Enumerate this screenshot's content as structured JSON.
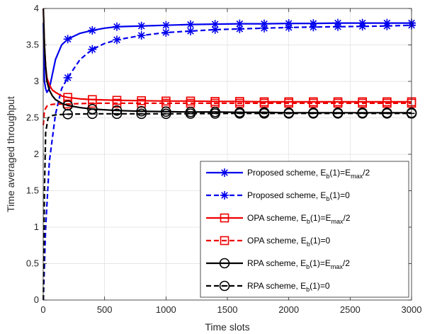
{
  "chart_data": {
    "type": "line",
    "title": "",
    "xlabel": "Time slots",
    "ylabel": "Time averaged throughput",
    "xlim": [
      0,
      3000
    ],
    "ylim": [
      0,
      4
    ],
    "xticks": [
      0,
      500,
      1000,
      1500,
      2000,
      2500,
      3000
    ],
    "yticks": [
      0,
      0.5,
      1,
      1.5,
      2,
      2.5,
      3,
      3.5,
      4
    ],
    "xtick_labels": [
      "0",
      "500",
      "1000",
      "1500",
      "2000",
      "2500",
      "3000"
    ],
    "ytick_labels": [
      "0",
      "0.5",
      "1",
      "1.5",
      "2",
      "2.5",
      "3",
      "3.5",
      "4"
    ],
    "grid": true,
    "legend_position": "lower-right",
    "marker_x": [
      200,
      400,
      600,
      800,
      1000,
      1200,
      1400,
      1600,
      1800,
      2000,
      2200,
      2400,
      2600,
      2800,
      3000
    ],
    "series": [
      {
        "legend": {
          "main": "Proposed scheme, E",
          "sub1": "b",
          "mid": "(1)=E",
          "sub2": "max",
          "tail": "/2"
        },
        "color": "#0000ee",
        "dash": "solid",
        "marker": "asterisk",
        "x": [
          1,
          10,
          20,
          30,
          50,
          75,
          100,
          150,
          200,
          300,
          400,
          500,
          600,
          800,
          1000,
          1200,
          1400,
          1600,
          1800,
          2000,
          2200,
          2400,
          2600,
          2800,
          3000
        ],
        "y": [
          3.8,
          3.0,
          2.9,
          2.85,
          2.9,
          3.1,
          3.3,
          3.5,
          3.58,
          3.66,
          3.7,
          3.73,
          3.75,
          3.76,
          3.77,
          3.78,
          3.785,
          3.79,
          3.79,
          3.795,
          3.795,
          3.8,
          3.8,
          3.8,
          3.8
        ]
      },
      {
        "legend": {
          "main": "Proposed scheme, E",
          "sub1": "b",
          "mid": "(1)=0",
          "sub2": "",
          "tail": ""
        },
        "color": "#0000ee",
        "dash": "dashed",
        "marker": "asterisk",
        "x": [
          1,
          20,
          50,
          100,
          150,
          200,
          300,
          400,
          500,
          600,
          800,
          1000,
          1200,
          1400,
          1600,
          1800,
          2000,
          2200,
          2400,
          2600,
          2800,
          3000
        ],
        "y": [
          0.0,
          1.0,
          1.9,
          2.55,
          2.9,
          3.05,
          3.3,
          3.44,
          3.52,
          3.57,
          3.63,
          3.67,
          3.69,
          3.71,
          3.72,
          3.73,
          3.74,
          3.745,
          3.75,
          3.755,
          3.76,
          3.77
        ]
      },
      {
        "legend": {
          "main": "OPA scheme, E",
          "sub1": "b",
          "mid": "(1)=E",
          "sub2": "max",
          "tail": "/2"
        },
        "color": "#ee0000",
        "dash": "solid",
        "marker": "square",
        "x": [
          1,
          10,
          20,
          30,
          50,
          75,
          100,
          150,
          200,
          300,
          400,
          600,
          800,
          1000,
          1200,
          1400,
          1600,
          1800,
          2000,
          2200,
          2400,
          2600,
          2800,
          3000
        ],
        "y": [
          4.0,
          3.5,
          3.2,
          3.05,
          2.95,
          2.88,
          2.85,
          2.8,
          2.78,
          2.76,
          2.75,
          2.74,
          2.735,
          2.73,
          2.73,
          2.725,
          2.725,
          2.72,
          2.72,
          2.72,
          2.72,
          2.72,
          2.72,
          2.72
        ]
      },
      {
        "legend": {
          "main": "OPA scheme, E",
          "sub1": "b",
          "mid": "(1)=0",
          "sub2": "",
          "tail": ""
        },
        "color": "#ee0000",
        "dash": "dashed",
        "marker": "square",
        "x": [
          1,
          10,
          30,
          60,
          100,
          200,
          400,
          600,
          800,
          1000,
          1500,
          2000,
          2500,
          3000
        ],
        "y": [
          2.4,
          2.6,
          2.66,
          2.68,
          2.69,
          2.69,
          2.7,
          2.7,
          2.7,
          2.7,
          2.7,
          2.7,
          2.7,
          2.7
        ]
      },
      {
        "legend": {
          "main": "RPA scheme, E",
          "sub1": "b",
          "mid": "(1)=E",
          "sub2": "max",
          "tail": "/2"
        },
        "color": "#000000",
        "dash": "solid",
        "marker": "circle",
        "x": [
          1,
          10,
          20,
          30,
          50,
          75,
          100,
          150,
          200,
          300,
          400,
          600,
          800,
          1000,
          1200,
          1400,
          1600,
          1800,
          2000,
          2200,
          2400,
          2600,
          2800,
          3000
        ],
        "y": [
          4.0,
          3.5,
          3.2,
          3.0,
          2.88,
          2.8,
          2.75,
          2.7,
          2.67,
          2.64,
          2.62,
          2.6,
          2.59,
          2.585,
          2.58,
          2.58,
          2.575,
          2.575,
          2.57,
          2.57,
          2.57,
          2.57,
          2.57,
          2.57
        ]
      },
      {
        "legend": {
          "main": "RPA scheme, E",
          "sub1": "b",
          "mid": "(1)=0",
          "sub2": "",
          "tail": ""
        },
        "color": "#000000",
        "dash": "dashed",
        "marker": "circle-dash",
        "x": [
          1,
          10,
          20,
          40,
          70,
          100,
          200,
          400,
          600,
          800,
          1000,
          1500,
          2000,
          2500,
          3000
        ],
        "y": [
          0.0,
          1.5,
          2.3,
          2.5,
          2.53,
          2.54,
          2.55,
          2.555,
          2.555,
          2.555,
          2.555,
          2.56,
          2.56,
          2.56,
          2.56
        ]
      }
    ]
  }
}
